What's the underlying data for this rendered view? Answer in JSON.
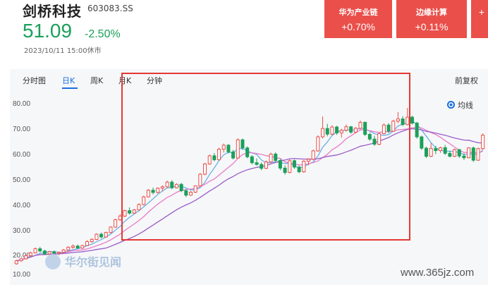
{
  "header": {
    "name": "剑桥科技",
    "code": "603083.SS",
    "price": "51.09",
    "change": "-2.50%",
    "timestamp": "2023/10/11 15:00休市"
  },
  "sectors": [
    {
      "name": "华为产业链",
      "value": "+0.70%"
    },
    {
      "name": "边缘计算",
      "value": "+0.11%"
    },
    {
      "name": "",
      "value": "+"
    }
  ],
  "tabs": [
    "分时图",
    "日K",
    "周K",
    "月K",
    "分钟"
  ],
  "active_tab": "日K",
  "fuquan_label": "前复权",
  "legend_label": "均线",
  "watermark": "华尔街见闻",
  "site_mark": "www.365jz.com",
  "colors": {
    "up": "#ea4f4a",
    "down": "#1aa05a",
    "ma5": "#6ab0e8",
    "ma10": "#e87cc8",
    "ma20": "#9a5cc8"
  },
  "chart_data": {
    "type": "candlestick",
    "y_ticks": [
      "80.00",
      "70.00",
      "60.00",
      "50.00",
      "40.00",
      "30.00",
      "20.00",
      "10.00"
    ],
    "ylim": [
      10,
      80
    ],
    "candles": [
      [
        15.2,
        16.8,
        14.8,
        16.4
      ],
      [
        16.4,
        17.5,
        16.0,
        17.2
      ],
      [
        17.2,
        18.9,
        16.9,
        18.5
      ],
      [
        18.5,
        20.1,
        18.1,
        19.6
      ],
      [
        19.6,
        21.8,
        19.4,
        21.3
      ],
      [
        21.3,
        22.1,
        19.8,
        20.4
      ],
      [
        20.4,
        20.9,
        18.8,
        19.2
      ],
      [
        19.2,
        20.5,
        18.9,
        20.1
      ],
      [
        20.1,
        20.6,
        19.1,
        19.5
      ],
      [
        19.5,
        20.2,
        18.7,
        19.9
      ],
      [
        19.9,
        21.2,
        19.5,
        20.8
      ],
      [
        20.8,
        22.3,
        20.4,
        21.9
      ],
      [
        21.9,
        23.1,
        21.3,
        22.4
      ],
      [
        22.4,
        23.0,
        21.2,
        21.6
      ],
      [
        21.6,
        22.9,
        21.2,
        22.6
      ],
      [
        22.6,
        24.8,
        22.3,
        24.2
      ],
      [
        24.2,
        25.6,
        23.7,
        25.1
      ],
      [
        25.1,
        27.6,
        24.8,
        27.2
      ],
      [
        27.2,
        27.9,
        25.5,
        26.1
      ],
      [
        26.1,
        28.3,
        25.8,
        27.9
      ],
      [
        27.9,
        30.5,
        27.6,
        30.1
      ],
      [
        30.1,
        33.5,
        29.8,
        33.1
      ],
      [
        33.1,
        35.4,
        32.6,
        34.6
      ],
      [
        34.6,
        37.2,
        34.1,
        36.8
      ],
      [
        36.8,
        38.1,
        35.2,
        35.8
      ],
      [
        35.8,
        37.5,
        35.4,
        37.1
      ],
      [
        37.1,
        39.8,
        36.8,
        39.3
      ],
      [
        39.3,
        42.9,
        38.9,
        42.4
      ],
      [
        42.4,
        45.6,
        42.1,
        45.1
      ],
      [
        45.1,
        46.2,
        43.4,
        44.2
      ],
      [
        44.2,
        46.3,
        43.8,
        45.9
      ],
      [
        45.9,
        47.1,
        44.6,
        46.5
      ],
      [
        46.5,
        49.0,
        46.1,
        48.4
      ],
      [
        48.4,
        49.2,
        45.5,
        46.1
      ],
      [
        46.1,
        47.9,
        45.8,
        47.5
      ],
      [
        47.5,
        48.1,
        44.3,
        44.9
      ],
      [
        44.9,
        45.5,
        42.3,
        43.1
      ],
      [
        43.1,
        44.8,
        42.8,
        44.3
      ],
      [
        44.3,
        47.1,
        44.0,
        46.9
      ],
      [
        46.9,
        52.1,
        46.7,
        51.6
      ],
      [
        51.6,
        56.2,
        51.2,
        55.8
      ],
      [
        55.8,
        59.6,
        55.4,
        59.1
      ],
      [
        59.1,
        60.2,
        56.8,
        57.5
      ],
      [
        57.5,
        62.4,
        57.1,
        61.8
      ],
      [
        61.8,
        64.1,
        60.4,
        63.4
      ],
      [
        63.4,
        63.9,
        60.1,
        60.7
      ],
      [
        60.7,
        61.5,
        57.6,
        58.2
      ],
      [
        58.2,
        66.2,
        57.9,
        65.6
      ],
      [
        65.6,
        66.1,
        61.5,
        62.3
      ],
      [
        62.3,
        62.9,
        58.1,
        58.7
      ],
      [
        58.7,
        59.4,
        55.6,
        56.3
      ],
      [
        56.3,
        58.0,
        55.1,
        55.6
      ],
      [
        55.6,
        56.4,
        53.2,
        54.0
      ],
      [
        54.0,
        57.2,
        53.7,
        56.6
      ],
      [
        56.6,
        60.4,
        56.1,
        59.8
      ],
      [
        59.8,
        60.5,
        56.4,
        57.2
      ],
      [
        57.2,
        57.8,
        53.3,
        54.1
      ],
      [
        54.1,
        55.2,
        51.4,
        52.3
      ],
      [
        52.3,
        57.6,
        52.0,
        57.1
      ],
      [
        57.1,
        57.6,
        53.8,
        54.5
      ],
      [
        54.5,
        55.1,
        52.0,
        52.6
      ],
      [
        52.6,
        57.3,
        52.2,
        56.9
      ],
      [
        56.9,
        58.1,
        55.3,
        57.7
      ],
      [
        57.7,
        61.6,
        57.2,
        61.1
      ],
      [
        61.1,
        67.4,
        60.7,
        66.8
      ],
      [
        66.8,
        75.1,
        66.2,
        70.2
      ],
      [
        70.2,
        72.1,
        67.0,
        67.9
      ],
      [
        67.9,
        71.5,
        67.4,
        70.8
      ],
      [
        70.8,
        71.3,
        67.6,
        68.4
      ],
      [
        68.4,
        70.1,
        66.5,
        69.5
      ],
      [
        69.5,
        71.8,
        68.9,
        70.9
      ],
      [
        70.9,
        71.3,
        68.1,
        68.7
      ],
      [
        68.7,
        70.8,
        68.3,
        70.3
      ],
      [
        70.3,
        73.4,
        69.8,
        72.7
      ],
      [
        72.7,
        73.1,
        67.1,
        67.8
      ],
      [
        67.8,
        68.5,
        65.2,
        65.9
      ],
      [
        65.9,
        67.2,
        63.1,
        63.8
      ],
      [
        63.8,
        68.6,
        63.4,
        68.1
      ],
      [
        68.1,
        72.3,
        67.8,
        71.6
      ],
      [
        71.6,
        72.4,
        68.2,
        69.1
      ],
      [
        69.1,
        73.8,
        68.8,
        73.2
      ],
      [
        73.2,
        76.9,
        72.3,
        74.1
      ],
      [
        74.1,
        75.2,
        71.2,
        71.8
      ],
      [
        71.8,
        78.6,
        71.5,
        74.8
      ],
      [
        74.8,
        75.4,
        71.8,
        72.4
      ],
      [
        72.4,
        72.9,
        66.1,
        66.8
      ],
      [
        66.8,
        67.3,
        61.5,
        62.2
      ],
      [
        62.2,
        62.8,
        58.2,
        58.9
      ],
      [
        58.9,
        64.2,
        58.6,
        62.1
      ],
      [
        62.1,
        63.2,
        59.8,
        61.2
      ],
      [
        61.2,
        62.8,
        60.3,
        62.4
      ],
      [
        62.4,
        63.5,
        59.4,
        60.1
      ],
      [
        60.1,
        61.2,
        58.4,
        58.9
      ],
      [
        58.9,
        62.1,
        58.6,
        61.6
      ],
      [
        61.6,
        61.9,
        58.2,
        59.0
      ],
      [
        59.0,
        60.1,
        57.4,
        58.3
      ],
      [
        58.3,
        62.6,
        58.1,
        62.3
      ],
      [
        62.3,
        62.8,
        56.6,
        57.3
      ],
      [
        57.3,
        62.4,
        57.1,
        62.0
      ],
      [
        62.0,
        68.2,
        61.6,
        67.5
      ]
    ]
  }
}
